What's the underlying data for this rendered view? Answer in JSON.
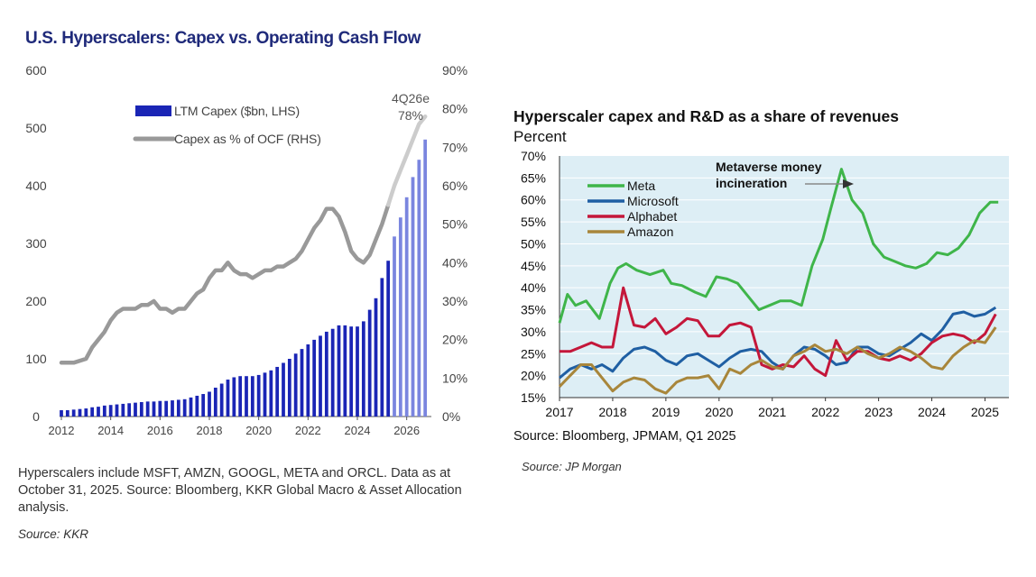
{
  "chart_data": [
    {
      "type": "bar",
      "title": "U.S. Hyperscalers: Capex vs. Operating Cash Flow",
      "ylabel_left": "LTM Capex ($bn)",
      "ylabel_right": "Capex as % of OCF",
      "ylim": [
        0,
        600
      ],
      "ylim_right": [
        0,
        90
      ],
      "y_ticks_left": [
        "600",
        "500",
        "400",
        "300",
        "200",
        "100",
        "0"
      ],
      "y_ticks_right": [
        "90%",
        "80%",
        "70%",
        "60%",
        "50%",
        "40%",
        "30%",
        "20%",
        "10%",
        "0%"
      ],
      "x_ticks": [
        "2012",
        "2014",
        "2016",
        "2018",
        "2020",
        "2022",
        "2024",
        "2026"
      ],
      "legend": [
        "LTM Capex ($bn, LHS)",
        "Capex as % of OCF (RHS)"
      ],
      "annotation": {
        "label": "4Q26e",
        "value": "78%"
      },
      "colors": {
        "actual": "#1a25b5",
        "forecast": "#7a85df",
        "line": "#999999",
        "line_forecast": "#cccccc"
      },
      "first_estimate_index": 54,
      "series": [
        {
          "name": "LTM Capex ($bn, LHS)",
          "x": [
            2012.0,
            2012.25,
            2012.5,
            2012.75,
            2013.0,
            2013.25,
            2013.5,
            2013.75,
            2014.0,
            2014.25,
            2014.5,
            2014.75,
            2015.0,
            2015.25,
            2015.5,
            2015.75,
            2016.0,
            2016.25,
            2016.5,
            2016.75,
            2017.0,
            2017.25,
            2017.5,
            2017.75,
            2018.0,
            2018.25,
            2018.5,
            2018.75,
            2019.0,
            2019.25,
            2019.5,
            2019.75,
            2020.0,
            2020.25,
            2020.5,
            2020.75,
            2021.0,
            2021.25,
            2021.5,
            2021.75,
            2022.0,
            2022.25,
            2022.5,
            2022.75,
            2023.0,
            2023.25,
            2023.5,
            2023.75,
            2024.0,
            2024.25,
            2024.5,
            2024.75,
            2025.0,
            2025.25,
            2025.5,
            2025.75,
            2026.0,
            2026.25,
            2026.5,
            2026.75
          ],
          "values": [
            11,
            11,
            12,
            13,
            14,
            16,
            17,
            19,
            20,
            21,
            22,
            23,
            24,
            25,
            26,
            26,
            27,
            27,
            28,
            29,
            30,
            33,
            36,
            39,
            43,
            50,
            57,
            64,
            68,
            70,
            70,
            70,
            72,
            76,
            80,
            86,
            93,
            100,
            109,
            117,
            125,
            133,
            140,
            147,
            152,
            158,
            158,
            156,
            156,
            165,
            185,
            205,
            240,
            270,
            312,
            345,
            380,
            415,
            445,
            480
          ]
        },
        {
          "name": "Capex as % of OCF (RHS)",
          "x": [
            2012.0,
            2012.5,
            2013.0,
            2013.25,
            2013.5,
            2013.75,
            2014.0,
            2014.25,
            2014.5,
            2014.75,
            2015.0,
            2015.25,
            2015.5,
            2015.75,
            2016.0,
            2016.25,
            2016.5,
            2016.75,
            2017.0,
            2017.25,
            2017.5,
            2017.75,
            2018.0,
            2018.25,
            2018.5,
            2018.75,
            2019.0,
            2019.25,
            2019.5,
            2019.75,
            2020.0,
            2020.25,
            2020.5,
            2020.75,
            2021.0,
            2021.25,
            2021.5,
            2021.75,
            2022.0,
            2022.25,
            2022.5,
            2022.75,
            2023.0,
            2023.25,
            2023.5,
            2023.75,
            2024.0,
            2024.25,
            2024.5,
            2024.75,
            2025.0,
            2025.25,
            2025.5,
            2025.75,
            2026.0,
            2026.25,
            2026.5,
            2026.75
          ],
          "values": [
            14,
            14,
            15,
            18,
            20,
            22,
            25,
            27,
            28,
            28,
            28,
            29,
            29,
            30,
            28,
            28,
            27,
            28,
            28,
            30,
            32,
            33,
            36,
            38,
            38,
            40,
            38,
            37,
            37,
            36,
            37,
            38,
            38,
            39,
            39,
            40,
            41,
            43,
            46,
            49,
            51,
            54,
            54,
            52,
            48,
            43,
            41,
            40,
            42,
            46,
            50,
            55,
            60,
            64,
            68,
            72,
            76,
            78
          ]
        }
      ],
      "note": "Hyperscalers include MSFT, AMZN, GOOGL, META and ORCL. Data as at October 31, 2025. Source: Bloomberg, KKR Global Macro & Asset Allocation analysis.",
      "source": "Source: KKR"
    },
    {
      "type": "line",
      "title": "Hyperscaler capex and R&D as a share of revenues",
      "subtitle": "Percent",
      "ylim": [
        15,
        70
      ],
      "xlim": [
        2017,
        2025.45
      ],
      "y_ticks": [
        "70%",
        "65%",
        "60%",
        "55%",
        "50%",
        "45%",
        "40%",
        "35%",
        "30%",
        "25%",
        "20%",
        "15%"
      ],
      "x_ticks": [
        "2017",
        "2018",
        "2019",
        "2020",
        "2021",
        "2022",
        "2023",
        "2024",
        "2025"
      ],
      "annotation": "Metaverse money incineration",
      "annotation_lines": [
        "Metaverse money",
        "incineration"
      ],
      "background": "#ddeef5",
      "series": [
        {
          "name": "Meta",
          "color": "#3fb54a",
          "x": [
            2017.0,
            2017.15,
            2017.3,
            2017.5,
            2017.75,
            2017.95,
            2018.1,
            2018.25,
            2018.45,
            2018.7,
            2018.95,
            2019.1,
            2019.3,
            2019.55,
            2019.75,
            2019.95,
            2020.15,
            2020.35,
            2020.55,
            2020.75,
            2020.95,
            2021.15,
            2021.35,
            2021.55,
            2021.75,
            2021.95,
            2022.1,
            2022.3,
            2022.5,
            2022.7,
            2022.9,
            2023.1,
            2023.3,
            2023.5,
            2023.7,
            2023.9,
            2024.1,
            2024.3,
            2024.5,
            2024.7,
            2024.9,
            2025.1,
            2025.25
          ],
          "values": [
            32,
            38.5,
            36,
            37,
            33,
            41,
            44.5,
            45.5,
            44,
            43,
            44,
            41,
            40.5,
            39,
            38,
            42.5,
            42,
            41,
            38,
            35,
            36,
            37,
            37,
            36,
            45,
            51,
            58,
            67,
            60,
            57,
            50,
            47,
            46,
            45,
            44.5,
            45.5,
            48,
            47.5,
            49,
            52,
            57,
            59.5,
            59.5
          ]
        },
        {
          "name": "Microsoft",
          "color": "#1f5fa3",
          "x": [
            2017.0,
            2017.2,
            2017.4,
            2017.6,
            2017.8,
            2018.0,
            2018.2,
            2018.4,
            2018.6,
            2018.8,
            2019.0,
            2019.2,
            2019.4,
            2019.6,
            2019.8,
            2020.0,
            2020.2,
            2020.4,
            2020.6,
            2020.8,
            2021.0,
            2021.2,
            2021.4,
            2021.6,
            2021.8,
            2022.0,
            2022.2,
            2022.4,
            2022.6,
            2022.8,
            2023.0,
            2023.2,
            2023.4,
            2023.6,
            2023.8,
            2024.0,
            2024.2,
            2024.4,
            2024.6,
            2024.8,
            2025.0,
            2025.2
          ],
          "values": [
            19.5,
            21.5,
            22.5,
            21.5,
            22.5,
            21,
            24,
            26,
            26.5,
            25.5,
            23.5,
            22.5,
            24.5,
            25,
            23.5,
            22,
            24,
            25.5,
            26,
            25.5,
            23,
            21.5,
            24.5,
            26.5,
            26,
            24.5,
            22.5,
            23,
            26.5,
            26.5,
            25,
            24.5,
            26,
            27.5,
            29.5,
            28,
            30.5,
            34,
            34.5,
            33.5,
            34,
            35.5
          ]
        },
        {
          "name": "Alphabet",
          "color": "#c4173a",
          "x": [
            2017.0,
            2017.2,
            2017.4,
            2017.6,
            2017.8,
            2018.0,
            2018.2,
            2018.4,
            2018.6,
            2018.8,
            2019.0,
            2019.2,
            2019.4,
            2019.6,
            2019.8,
            2020.0,
            2020.2,
            2020.4,
            2020.6,
            2020.8,
            2021.0,
            2021.2,
            2021.4,
            2021.6,
            2021.8,
            2022.0,
            2022.2,
            2022.4,
            2022.6,
            2022.8,
            2023.0,
            2023.2,
            2023.4,
            2023.6,
            2023.8,
            2024.0,
            2024.2,
            2024.4,
            2024.6,
            2024.8,
            2025.0,
            2025.2
          ],
          "values": [
            25.5,
            25.5,
            26.5,
            27.5,
            26.5,
            26.5,
            40,
            31.5,
            31,
            33,
            29.5,
            31,
            33,
            32.5,
            29,
            29,
            31.5,
            32,
            31,
            22.5,
            21.5,
            22.5,
            22,
            24.5,
            21.5,
            20,
            28,
            23.5,
            25.5,
            25.5,
            24,
            23.5,
            24.5,
            23.5,
            25,
            27.5,
            29,
            29.5,
            29,
            27.5,
            29.5,
            34
          ]
        },
        {
          "name": "Amazon",
          "color": "#a8863b",
          "x": [
            2017.0,
            2017.2,
            2017.4,
            2017.6,
            2017.8,
            2018.0,
            2018.2,
            2018.4,
            2018.6,
            2018.8,
            2019.0,
            2019.2,
            2019.4,
            2019.6,
            2019.8,
            2020.0,
            2020.2,
            2020.4,
            2020.6,
            2020.8,
            2021.0,
            2021.2,
            2021.4,
            2021.6,
            2021.8,
            2022.0,
            2022.2,
            2022.4,
            2022.6,
            2022.8,
            2023.0,
            2023.2,
            2023.4,
            2023.6,
            2023.8,
            2024.0,
            2024.2,
            2024.4,
            2024.6,
            2024.8,
            2025.0,
            2025.2
          ],
          "values": [
            17.5,
            20,
            22.5,
            22.5,
            19.5,
            16.5,
            18.5,
            19.5,
            19,
            17,
            16,
            18.5,
            19.5,
            19.5,
            20,
            17,
            21.5,
            20.5,
            22.5,
            23.5,
            22,
            21.5,
            24.5,
            25.5,
            27,
            25.5,
            26,
            25,
            26.5,
            25,
            24,
            25,
            26.5,
            25.5,
            24,
            22,
            21.5,
            24.5,
            26.5,
            28,
            27.5,
            31
          ]
        }
      ],
      "source_line": "Source: Bloomberg, JPMAM, Q1 2025",
      "source": "Source: JP Morgan"
    }
  ]
}
